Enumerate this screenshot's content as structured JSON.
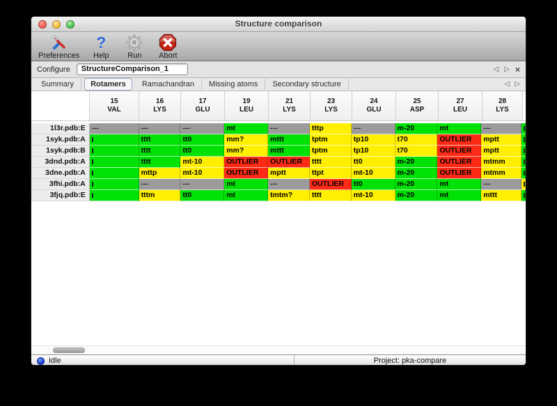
{
  "window": {
    "title": "Structure comparison"
  },
  "toolbar": {
    "buttons": [
      {
        "label": "Preferences",
        "icon": "tools-icon"
      },
      {
        "label": "Help",
        "icon": "question-mark-icon",
        "glyph": "?"
      },
      {
        "label": "Run",
        "icon": "gear-icon"
      },
      {
        "label": "Abort",
        "icon": "stop-x-icon"
      }
    ]
  },
  "configure": {
    "label": "Configure",
    "value": "StructureComparison_1"
  },
  "nav": {
    "prev": "◁",
    "next": "▷",
    "close": "×"
  },
  "tabs": {
    "items": [
      "Summary",
      "Rotamers",
      "Ramachandran",
      "Missing atoms",
      "Secondary structure"
    ],
    "active": "Rotamers"
  },
  "colors": {
    "green": "#00e206",
    "yellow": "#ffef00",
    "red": "#fd2b16",
    "gray": "#9b9b9b"
  },
  "table": {
    "columns": [
      {
        "num": "15",
        "res": "VAL"
      },
      {
        "num": "16",
        "res": "LYS"
      },
      {
        "num": "17",
        "res": "GLU"
      },
      {
        "num": "19",
        "res": "LEU"
      },
      {
        "num": "21",
        "res": "LYS"
      },
      {
        "num": "23",
        "res": "LYS"
      },
      {
        "num": "24",
        "res": "GLU"
      },
      {
        "num": "25",
        "res": "ASP"
      },
      {
        "num": "27",
        "res": "LEU"
      },
      {
        "num": "28",
        "res": "LYS"
      }
    ],
    "rows": [
      {
        "label": "1l3r.pdb:E",
        "partial": "green",
        "cells": [
          {
            "t": "---",
            "c": "gray"
          },
          {
            "t": "---",
            "c": "gray"
          },
          {
            "t": "---",
            "c": "gray"
          },
          {
            "t": "mt",
            "c": "green"
          },
          {
            "t": "---",
            "c": "gray"
          },
          {
            "t": "tttp",
            "c": "yellow"
          },
          {
            "t": "---",
            "c": "gray"
          },
          {
            "t": "m-20",
            "c": "green"
          },
          {
            "t": "mt",
            "c": "green"
          },
          {
            "t": "---",
            "c": "gray"
          }
        ]
      },
      {
        "label": "1syk.pdb:A",
        "partial": "green",
        "cells": [
          {
            "t": "",
            "c": "green",
            "sliver": true
          },
          {
            "t": "tttt",
            "c": "green"
          },
          {
            "t": "tt0",
            "c": "green"
          },
          {
            "t": "mm?",
            "c": "yellow"
          },
          {
            "t": "mttt",
            "c": "green"
          },
          {
            "t": "tptm",
            "c": "yellow"
          },
          {
            "t": "tp10",
            "c": "yellow"
          },
          {
            "t": "t70",
            "c": "yellow"
          },
          {
            "t": "OUTLIER",
            "c": "red"
          },
          {
            "t": "mptt",
            "c": "yellow"
          }
        ]
      },
      {
        "label": "1syk.pdb:B",
        "partial": "green",
        "cells": [
          {
            "t": "",
            "c": "green",
            "sliver": true
          },
          {
            "t": "tttt",
            "c": "green"
          },
          {
            "t": "tt0",
            "c": "green"
          },
          {
            "t": "mm?",
            "c": "yellow"
          },
          {
            "t": "mttt",
            "c": "green"
          },
          {
            "t": "tptm",
            "c": "yellow"
          },
          {
            "t": "tp10",
            "c": "yellow"
          },
          {
            "t": "t70",
            "c": "yellow"
          },
          {
            "t": "OUTLIER",
            "c": "red"
          },
          {
            "t": "mptt",
            "c": "yellow"
          }
        ]
      },
      {
        "label": "3dnd.pdb:A",
        "partial": "green",
        "cells": [
          {
            "t": "",
            "c": "green",
            "sliver": true
          },
          {
            "t": "tttt",
            "c": "green"
          },
          {
            "t": "mt-10",
            "c": "yellow"
          },
          {
            "t": "OUTLIER",
            "c": "red"
          },
          {
            "t": "OUTLIER",
            "c": "red"
          },
          {
            "t": "tttt",
            "c": "yellow"
          },
          {
            "t": "tt0",
            "c": "yellow"
          },
          {
            "t": "m-20",
            "c": "green"
          },
          {
            "t": "OUTLIER",
            "c": "red"
          },
          {
            "t": "mtmm",
            "c": "yellow"
          }
        ]
      },
      {
        "label": "3dne.pdb:A",
        "partial": "green",
        "cells": [
          {
            "t": "",
            "c": "green",
            "sliver": true
          },
          {
            "t": "mttp",
            "c": "yellow"
          },
          {
            "t": "mt-10",
            "c": "yellow"
          },
          {
            "t": "OUTLIER",
            "c": "red"
          },
          {
            "t": "mptt",
            "c": "yellow"
          },
          {
            "t": "ttpt",
            "c": "yellow"
          },
          {
            "t": "mt-10",
            "c": "yellow"
          },
          {
            "t": "m-20",
            "c": "green"
          },
          {
            "t": "OUTLIER",
            "c": "red"
          },
          {
            "t": "mtmm",
            "c": "yellow"
          }
        ]
      },
      {
        "label": "3fhi.pdb:A",
        "partial": "yellow",
        "cells": [
          {
            "t": "",
            "c": "green",
            "sliver": true
          },
          {
            "t": "---",
            "c": "gray"
          },
          {
            "t": "---",
            "c": "gray"
          },
          {
            "t": "mt",
            "c": "green"
          },
          {
            "t": "---",
            "c": "gray"
          },
          {
            "t": "OUTLIER",
            "c": "red"
          },
          {
            "t": "tt0",
            "c": "green"
          },
          {
            "t": "m-20",
            "c": "green"
          },
          {
            "t": "mt",
            "c": "green"
          },
          {
            "t": "---",
            "c": "gray"
          }
        ]
      },
      {
        "label": "3fjq.pdb:E",
        "partial": "green",
        "cells": [
          {
            "t": "",
            "c": "green",
            "sliver": true
          },
          {
            "t": "tttm",
            "c": "yellow"
          },
          {
            "t": "tt0",
            "c": "green"
          },
          {
            "t": "mt",
            "c": "green"
          },
          {
            "t": "tmtm?",
            "c": "yellow"
          },
          {
            "t": "tttt",
            "c": "yellow"
          },
          {
            "t": "mt-10",
            "c": "yellow"
          },
          {
            "t": "m-20",
            "c": "green"
          },
          {
            "t": "mt",
            "c": "green"
          },
          {
            "t": "mttt",
            "c": "yellow"
          }
        ]
      }
    ]
  },
  "statusbar": {
    "status": "Idle",
    "project": "Project: pka-compare"
  }
}
